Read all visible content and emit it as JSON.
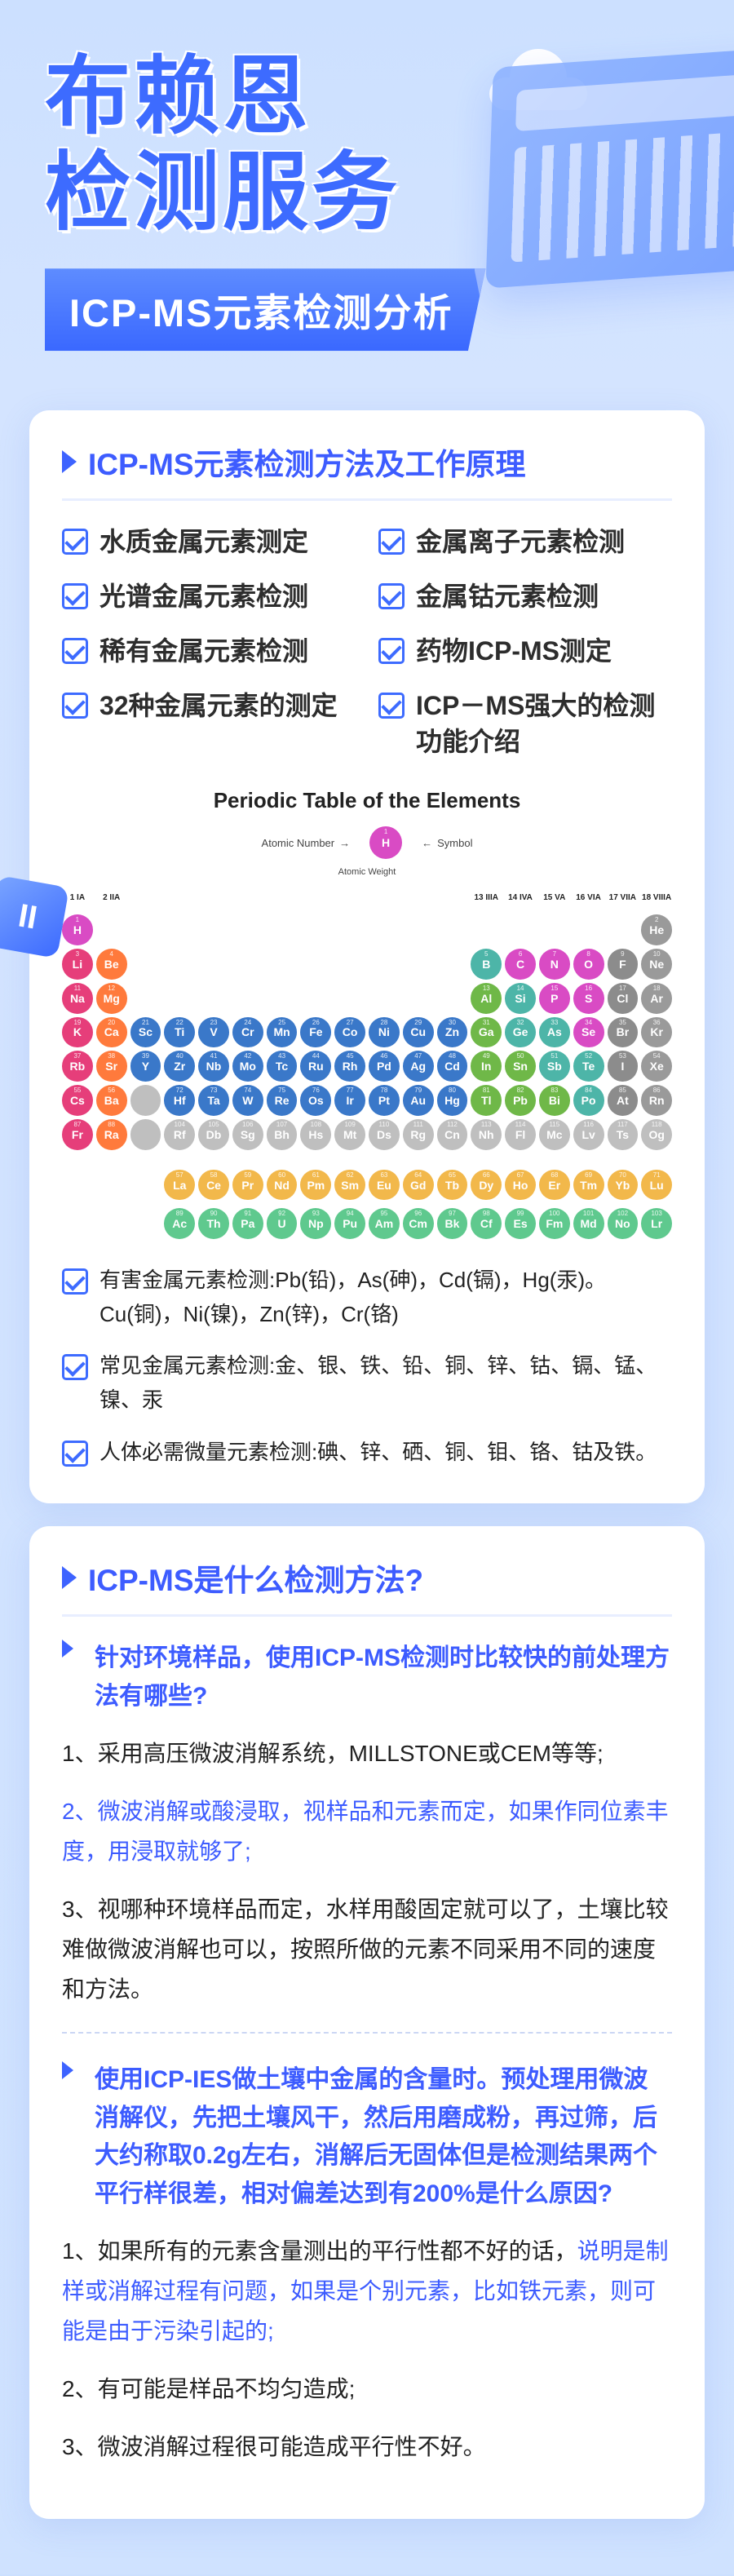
{
  "hero": {
    "title_line1": "布赖恩",
    "title_line2": "检测服务",
    "subtitle": "ICP-MS元素检测分析"
  },
  "section1": {
    "title": "ICP-MS元素检测方法及工作原理",
    "methods": [
      "水质金属元素测定",
      "金属离子元素检测",
      "光谱金属元素检测",
      "金属钴元素检测",
      "稀有金属元素检测",
      "药物ICP-MS测定",
      "32种金属元素的测定",
      "ICP－MS强大的检测功能介绍"
    ],
    "periodic_title": "Periodic Table of the Elements",
    "legend": {
      "atomic_number": "Atomic Number",
      "symbol": "Symbol",
      "atomic_weight": "Atomic Weight"
    },
    "notes": [
      "有害金属元素检测:Pb(铅)，As(砷)，Cd(镉)，Hg(汞)。Cu(铜)，Ni(镍)，Zn(锌)，Cr(铬)",
      "常见金属元素检测:金、银、铁、铅、铜、锌、钴、镉、锰、镍、汞",
      "人体必需微量元素检测:碘、锌、硒、铜、钼、铬、钴及铁。"
    ]
  },
  "section2": {
    "title": "ICP-MS是什么检测方法?",
    "qa": [
      {
        "q": "针对环境样品，使用ICP-MS检测时比较快的前处理方法有哪些?",
        "a": [
          {
            "text": "1、采用高压微波消解系统，MILLSTONE或CEM等等;",
            "hl": false
          },
          {
            "text": "2、微波消解或酸浸取，视样品和元素而定，如果作同位素丰度，用浸取就够了;",
            "hl": true
          },
          {
            "text": "3、视哪种环境样品而定，水样用酸固定就可以了，土壤比较难做微波消解也可以，按照所做的元素不同采用不同的速度和方法。",
            "hl": false
          }
        ]
      },
      {
        "q": "使用ICP-IES做土壤中金属的含量时。预处理用微波消解仪，先把土壤风干，然后用磨成粉，再过筛，后大约称取0.2g左右，消解后无固体但是检测结果两个平行样很差，相对偏差达到有200%是什么原因?",
        "a": [
          {
            "text": "1、如果所有的元素含量测出的平行性都不好的话，说明是制样或消解过程有问题，如果是个别元素，比如铁元素，则可能是由于污染引起的;",
            "hl_partial": true,
            "pre": "1、如果所有的元素含量测出的平行性都不好的话，",
            "mid": "说明是制样或消解过程有问题，如果是个别元素，比如铁元素，则可能是由于污染引起的;"
          },
          {
            "text": "2、有可能是样品不均匀造成;",
            "hl": false
          },
          {
            "text": "3、微波消解过程很可能造成平行性不好。",
            "hl": false
          }
        ]
      }
    ]
  },
  "periodic": {
    "colors": {
      "alkali": "#e63e7a",
      "alkaline": "#ff7a3c",
      "transition": "#3a78c9",
      "post": "#6fb848",
      "metalloid": "#4db5a8",
      "nonmetal": "#d94bc4",
      "halogen": "#8c8c8c",
      "noble": "#9a9a9a",
      "lanth": "#f2b84b",
      "actin": "#5fc98e",
      "unknown": "#bfbfbf"
    },
    "groups_header": [
      "1\nIA",
      "2\nIIA",
      "",
      "",
      "",
      "",
      "",
      "",
      "",
      "",
      "",
      "",
      "13\nIIIA",
      "14\nIVA",
      "15\nVA",
      "16\nVIA",
      "17\nVIIA",
      "18\nVIIIA"
    ],
    "rows": [
      [
        {
          "n": 1,
          "s": "H",
          "c": "nonmetal"
        },
        null,
        null,
        null,
        null,
        null,
        null,
        null,
        null,
        null,
        null,
        null,
        null,
        null,
        null,
        null,
        null,
        {
          "n": 2,
          "s": "He",
          "c": "noble"
        }
      ],
      [
        {
          "n": 3,
          "s": "Li",
          "c": "alkali"
        },
        {
          "n": 4,
          "s": "Be",
          "c": "alkaline"
        },
        null,
        null,
        null,
        null,
        null,
        null,
        null,
        null,
        null,
        null,
        {
          "n": 5,
          "s": "B",
          "c": "metalloid"
        },
        {
          "n": 6,
          "s": "C",
          "c": "nonmetal"
        },
        {
          "n": 7,
          "s": "N",
          "c": "nonmetal"
        },
        {
          "n": 8,
          "s": "O",
          "c": "nonmetal"
        },
        {
          "n": 9,
          "s": "F",
          "c": "halogen"
        },
        {
          "n": 10,
          "s": "Ne",
          "c": "noble"
        }
      ],
      [
        {
          "n": 11,
          "s": "Na",
          "c": "alkali"
        },
        {
          "n": 12,
          "s": "Mg",
          "c": "alkaline"
        },
        null,
        null,
        null,
        null,
        null,
        null,
        null,
        null,
        null,
        null,
        {
          "n": 13,
          "s": "Al",
          "c": "post"
        },
        {
          "n": 14,
          "s": "Si",
          "c": "metalloid"
        },
        {
          "n": 15,
          "s": "P",
          "c": "nonmetal"
        },
        {
          "n": 16,
          "s": "S",
          "c": "nonmetal"
        },
        {
          "n": 17,
          "s": "Cl",
          "c": "halogen"
        },
        {
          "n": 18,
          "s": "Ar",
          "c": "noble"
        }
      ],
      [
        {
          "n": 19,
          "s": "K",
          "c": "alkali"
        },
        {
          "n": 20,
          "s": "Ca",
          "c": "alkaline"
        },
        {
          "n": 21,
          "s": "Sc",
          "c": "transition"
        },
        {
          "n": 22,
          "s": "Ti",
          "c": "transition"
        },
        {
          "n": 23,
          "s": "V",
          "c": "transition"
        },
        {
          "n": 24,
          "s": "Cr",
          "c": "transition"
        },
        {
          "n": 25,
          "s": "Mn",
          "c": "transition"
        },
        {
          "n": 26,
          "s": "Fe",
          "c": "transition"
        },
        {
          "n": 27,
          "s": "Co",
          "c": "transition"
        },
        {
          "n": 28,
          "s": "Ni",
          "c": "transition"
        },
        {
          "n": 29,
          "s": "Cu",
          "c": "transition"
        },
        {
          "n": 30,
          "s": "Zn",
          "c": "transition"
        },
        {
          "n": 31,
          "s": "Ga",
          "c": "post"
        },
        {
          "n": 32,
          "s": "Ge",
          "c": "metalloid"
        },
        {
          "n": 33,
          "s": "As",
          "c": "metalloid"
        },
        {
          "n": 34,
          "s": "Se",
          "c": "nonmetal"
        },
        {
          "n": 35,
          "s": "Br",
          "c": "halogen"
        },
        {
          "n": 36,
          "s": "Kr",
          "c": "noble"
        }
      ],
      [
        {
          "n": 37,
          "s": "Rb",
          "c": "alkali"
        },
        {
          "n": 38,
          "s": "Sr",
          "c": "alkaline"
        },
        {
          "n": 39,
          "s": "Y",
          "c": "transition"
        },
        {
          "n": 40,
          "s": "Zr",
          "c": "transition"
        },
        {
          "n": 41,
          "s": "Nb",
          "c": "transition"
        },
        {
          "n": 42,
          "s": "Mo",
          "c": "transition"
        },
        {
          "n": 43,
          "s": "Tc",
          "c": "transition"
        },
        {
          "n": 44,
          "s": "Ru",
          "c": "transition"
        },
        {
          "n": 45,
          "s": "Rh",
          "c": "transition"
        },
        {
          "n": 46,
          "s": "Pd",
          "c": "transition"
        },
        {
          "n": 47,
          "s": "Ag",
          "c": "transition"
        },
        {
          "n": 48,
          "s": "Cd",
          "c": "transition"
        },
        {
          "n": 49,
          "s": "In",
          "c": "post"
        },
        {
          "n": 50,
          "s": "Sn",
          "c": "post"
        },
        {
          "n": 51,
          "s": "Sb",
          "c": "metalloid"
        },
        {
          "n": 52,
          "s": "Te",
          "c": "metalloid"
        },
        {
          "n": 53,
          "s": "I",
          "c": "halogen"
        },
        {
          "n": 54,
          "s": "Xe",
          "c": "noble"
        }
      ],
      [
        {
          "n": 55,
          "s": "Cs",
          "c": "alkali"
        },
        {
          "n": 56,
          "s": "Ba",
          "c": "alkaline"
        },
        {
          "n": "",
          "s": "",
          "c": "unknown"
        },
        {
          "n": 72,
          "s": "Hf",
          "c": "transition"
        },
        {
          "n": 73,
          "s": "Ta",
          "c": "transition"
        },
        {
          "n": 74,
          "s": "W",
          "c": "transition"
        },
        {
          "n": 75,
          "s": "Re",
          "c": "transition"
        },
        {
          "n": 76,
          "s": "Os",
          "c": "transition"
        },
        {
          "n": 77,
          "s": "Ir",
          "c": "transition"
        },
        {
          "n": 78,
          "s": "Pt",
          "c": "transition"
        },
        {
          "n": 79,
          "s": "Au",
          "c": "transition"
        },
        {
          "n": 80,
          "s": "Hg",
          "c": "transition"
        },
        {
          "n": 81,
          "s": "Tl",
          "c": "post"
        },
        {
          "n": 82,
          "s": "Pb",
          "c": "post"
        },
        {
          "n": 83,
          "s": "Bi",
          "c": "post"
        },
        {
          "n": 84,
          "s": "Po",
          "c": "metalloid"
        },
        {
          "n": 85,
          "s": "At",
          "c": "halogen"
        },
        {
          "n": 86,
          "s": "Rn",
          "c": "noble"
        }
      ],
      [
        {
          "n": 87,
          "s": "Fr",
          "c": "alkali"
        },
        {
          "n": 88,
          "s": "Ra",
          "c": "alkaline"
        },
        {
          "n": "",
          "s": "",
          "c": "unknown"
        },
        {
          "n": 104,
          "s": "Rf",
          "c": "unknown"
        },
        {
          "n": 105,
          "s": "Db",
          "c": "unknown"
        },
        {
          "n": 106,
          "s": "Sg",
          "c": "unknown"
        },
        {
          "n": 107,
          "s": "Bh",
          "c": "unknown"
        },
        {
          "n": 108,
          "s": "Hs",
          "c": "unknown"
        },
        {
          "n": 109,
          "s": "Mt",
          "c": "unknown"
        },
        {
          "n": 110,
          "s": "Ds",
          "c": "unknown"
        },
        {
          "n": 111,
          "s": "Rg",
          "c": "unknown"
        },
        {
          "n": 112,
          "s": "Cn",
          "c": "unknown"
        },
        {
          "n": 113,
          "s": "Nh",
          "c": "unknown"
        },
        {
          "n": 114,
          "s": "Fl",
          "c": "unknown"
        },
        {
          "n": 115,
          "s": "Mc",
          "c": "unknown"
        },
        {
          "n": 116,
          "s": "Lv",
          "c": "unknown"
        },
        {
          "n": 117,
          "s": "Ts",
          "c": "unknown"
        },
        {
          "n": 118,
          "s": "Og",
          "c": "unknown"
        }
      ]
    ],
    "lanth": [
      {
        "n": 57,
        "s": "La"
      },
      {
        "n": 58,
        "s": "Ce"
      },
      {
        "n": 59,
        "s": "Pr"
      },
      {
        "n": 60,
        "s": "Nd"
      },
      {
        "n": 61,
        "s": "Pm"
      },
      {
        "n": 62,
        "s": "Sm"
      },
      {
        "n": 63,
        "s": "Eu"
      },
      {
        "n": 64,
        "s": "Gd"
      },
      {
        "n": 65,
        "s": "Tb"
      },
      {
        "n": 66,
        "s": "Dy"
      },
      {
        "n": 67,
        "s": "Ho"
      },
      {
        "n": 68,
        "s": "Er"
      },
      {
        "n": 69,
        "s": "Tm"
      },
      {
        "n": 70,
        "s": "Yb"
      },
      {
        "n": 71,
        "s": "Lu"
      }
    ],
    "actin": [
      {
        "n": 89,
        "s": "Ac"
      },
      {
        "n": 90,
        "s": "Th"
      },
      {
        "n": 91,
        "s": "Pa"
      },
      {
        "n": 92,
        "s": "U"
      },
      {
        "n": 93,
        "s": "Np"
      },
      {
        "n": 94,
        "s": "Pu"
      },
      {
        "n": 95,
        "s": "Am"
      },
      {
        "n": 96,
        "s": "Cm"
      },
      {
        "n": 97,
        "s": "Bk"
      },
      {
        "n": 98,
        "s": "Cf"
      },
      {
        "n": 99,
        "s": "Es"
      },
      {
        "n": 100,
        "s": "Fm"
      },
      {
        "n": 101,
        "s": "Md"
      },
      {
        "n": 102,
        "s": "No"
      },
      {
        "n": 103,
        "s": "Lr"
      }
    ]
  }
}
